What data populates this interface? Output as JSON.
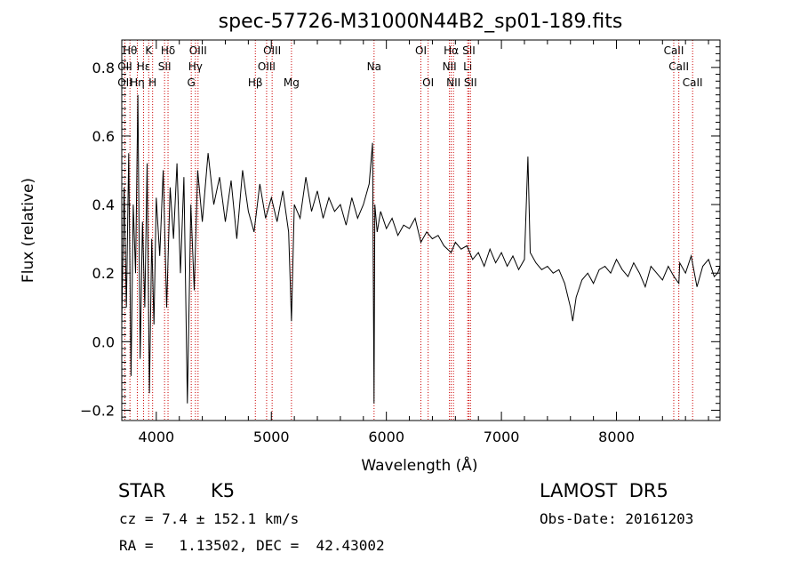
{
  "chart_data": {
    "type": "line",
    "title": "spec-57726-M31000N44B2_sp01-189.fits",
    "xlabel": "Wavelength (Å)",
    "ylabel": "Flux (relative)",
    "xlim": [
      3700,
      8900
    ],
    "ylim": [
      -0.23,
      0.88
    ],
    "x_ticks": [
      4000,
      5000,
      6000,
      7000,
      8000
    ],
    "x_tick_labels": [
      "4000",
      "5000",
      "6000",
      "7000",
      "8000"
    ],
    "y_ticks": [
      -0.2,
      0.0,
      0.2,
      0.4,
      0.6,
      0.8
    ],
    "y_tick_labels": [
      "−0.2",
      "0.0",
      "0.2",
      "0.4",
      "0.6",
      "0.8"
    ],
    "grid": false,
    "legend": "none",
    "line_color": "#000000",
    "marker_line_color": "#cc0000",
    "series": [
      {
        "x": [
          3700,
          3720,
          3740,
          3760,
          3780,
          3800,
          3820,
          3840,
          3860,
          3880,
          3900,
          3920,
          3940,
          3960,
          3980,
          4000,
          4030,
          4060,
          4090,
          4120,
          4150,
          4180,
          4210,
          4240,
          4270,
          4300,
          4330,
          4360,
          4400,
          4450,
          4500,
          4550,
          4600,
          4650,
          4700,
          4750,
          4800,
          4850,
          4900,
          4950,
          5000,
          5050,
          5100,
          5150,
          5175,
          5200,
          5250,
          5300,
          5350,
          5400,
          5450,
          5500,
          5550,
          5600,
          5650,
          5700,
          5750,
          5800,
          5850,
          5880,
          5893,
          5900,
          5920,
          5950,
          6000,
          6050,
          6100,
          6150,
          6200,
          6250,
          6300,
          6350,
          6400,
          6450,
          6500,
          6563,
          6600,
          6650,
          6700,
          6750,
          6800,
          6850,
          6900,
          6950,
          7000,
          7050,
          7100,
          7150,
          7200,
          7230,
          7250,
          7300,
          7350,
          7400,
          7450,
          7500,
          7550,
          7600,
          7620,
          7650,
          7700,
          7750,
          7800,
          7850,
          7900,
          7950,
          8000,
          8050,
          8100,
          8150,
          8200,
          8250,
          8300,
          8350,
          8400,
          8450,
          8500,
          8542,
          8550,
          8600,
          8650,
          8700,
          8750,
          8800,
          8850,
          8880,
          8900
        ],
        "y": [
          0.05,
          0.45,
          0.1,
          0.55,
          -0.1,
          0.4,
          0.2,
          0.72,
          -0.05,
          0.35,
          0.1,
          0.52,
          -0.15,
          0.3,
          0.05,
          0.42,
          0.25,
          0.5,
          0.1,
          0.45,
          0.3,
          0.52,
          0.2,
          0.48,
          -0.18,
          0.4,
          0.15,
          0.5,
          0.35,
          0.55,
          0.4,
          0.48,
          0.35,
          0.47,
          0.3,
          0.5,
          0.38,
          0.32,
          0.46,
          0.36,
          0.42,
          0.35,
          0.44,
          0.32,
          0.06,
          0.4,
          0.36,
          0.48,
          0.38,
          0.44,
          0.36,
          0.42,
          0.38,
          0.4,
          0.34,
          0.42,
          0.36,
          0.4,
          0.46,
          0.58,
          -0.18,
          0.4,
          0.32,
          0.38,
          0.33,
          0.36,
          0.31,
          0.34,
          0.33,
          0.36,
          0.29,
          0.32,
          0.3,
          0.31,
          0.28,
          0.26,
          0.29,
          0.27,
          0.28,
          0.24,
          0.26,
          0.22,
          0.27,
          0.23,
          0.26,
          0.22,
          0.25,
          0.21,
          0.24,
          0.54,
          0.26,
          0.23,
          0.21,
          0.22,
          0.2,
          0.21,
          0.17,
          0.1,
          0.06,
          0.13,
          0.18,
          0.2,
          0.17,
          0.21,
          0.22,
          0.2,
          0.24,
          0.21,
          0.19,
          0.23,
          0.2,
          0.16,
          0.22,
          0.2,
          0.18,
          0.22,
          0.19,
          0.17,
          0.23,
          0.2,
          0.25,
          0.16,
          0.22,
          0.24,
          0.19,
          0.2,
          0.22
        ]
      }
    ],
    "line_markers": [
      {
        "label": "Hθ",
        "x": 3771,
        "row": 0
      },
      {
        "label": "K",
        "x": 3934,
        "row": 0
      },
      {
        "label": "Hδ",
        "x": 4102,
        "row": 0
      },
      {
        "label": "OIII",
        "x": 4363,
        "row": 0
      },
      {
        "label": "OIII",
        "x": 5007,
        "row": 0
      },
      {
        "label": "OI",
        "x": 6300,
        "row": 0
      },
      {
        "label": "Hα",
        "x": 6563,
        "row": 0
      },
      {
        "label": "SII",
        "x": 6717,
        "row": 0
      },
      {
        "label": "CaII",
        "x": 8498,
        "row": 0
      },
      {
        "label": "OII",
        "x": 3727,
        "row": 1
      },
      {
        "label": "Hε",
        "x": 3889,
        "row": 1
      },
      {
        "label": "SII",
        "x": 4072,
        "row": 1
      },
      {
        "label": "Hγ",
        "x": 4340,
        "row": 1
      },
      {
        "label": "OIII",
        "x": 4959,
        "row": 1
      },
      {
        "label": "NII",
        "x": 6548,
        "row": 1
      },
      {
        "label": "Li",
        "x": 6707,
        "row": 1
      },
      {
        "label": "CaII",
        "x": 8542,
        "row": 1
      },
      {
        "label": "OII",
        "x": 3727,
        "row": 2
      },
      {
        "label": "Hη",
        "x": 3835,
        "row": 2
      },
      {
        "label": "H",
        "x": 3968,
        "row": 2
      },
      {
        "label": "G",
        "x": 4304,
        "row": 2
      },
      {
        "label": "Hβ",
        "x": 4861,
        "row": 2
      },
      {
        "label": "Mg",
        "x": 5175,
        "row": 2
      },
      {
        "label": "Na",
        "x": 5893,
        "row": 1
      },
      {
        "label": "OI",
        "x": 6363,
        "row": 2
      },
      {
        "label": "NII",
        "x": 6583,
        "row": 2
      },
      {
        "label": "SII",
        "x": 6731,
        "row": 2
      },
      {
        "label": "CaII",
        "x": 8662,
        "row": 2
      }
    ]
  },
  "info": {
    "object_class": "STAR",
    "subclass": "K5",
    "survey": "LAMOST  DR5",
    "cz": "cz = 7.4 ± 152.1 km/s",
    "obs_date": "Obs-Date: 20161203",
    "coords": "RA =   1.13502, DEC =  42.43002"
  }
}
